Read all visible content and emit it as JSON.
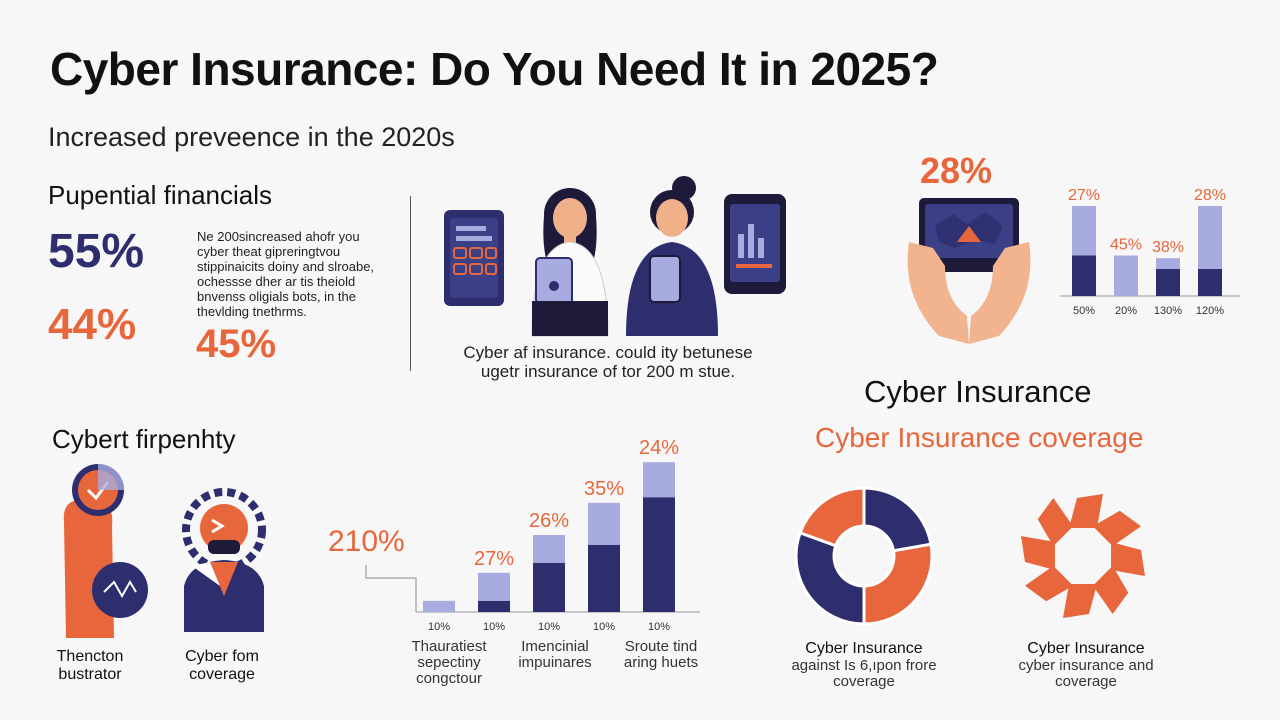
{
  "header": {
    "title": "Cyber Insurance: Do You Need It in 2025?",
    "subtitle": "Increased preveence in the 2020s"
  },
  "financials": {
    "heading": "Pupential financials",
    "stat_navy": "55%",
    "stat_orange_left": "44%",
    "stat_orange_right": "45%",
    "paragraph": "Ne 200sincreased ahofr you cyber theat gipreringtvou stippinaicits doiny and slroabe, ochessse dher ar tis theiold bnvenss oligials bots, in the thevlding tnethrms."
  },
  "people": {
    "caption_line1": "Cyber af insurance. could ity betunese",
    "caption_line2": "ugetr insurance of tor 200 m stue."
  },
  "top_right": {
    "headline_stat": "28%",
    "bars": [
      {
        "label": "27%",
        "axis": "50%",
        "light": 0.55,
        "dark": 0.45,
        "label_color": "#e8663b"
      },
      {
        "label": "45%",
        "axis": "20%",
        "light": 0.45,
        "dark": 0.0,
        "label_color": "#e8663b"
      },
      {
        "label": "38%",
        "axis": "130%",
        "light": 0.12,
        "dark": 0.3,
        "label_color": "#e8663b"
      },
      {
        "label": "28%",
        "axis": "120%",
        "light": 0.7,
        "dark": 0.3,
        "label_color": "#e8663b"
      }
    ]
  },
  "property": {
    "heading": "Cybert firpenhty",
    "item1_label": "Thencton bustrator",
    "item2_label": "Cyber fom coverage"
  },
  "mid_chart": {
    "big_value": "210%",
    "bars": [
      {
        "top_label": "",
        "axis": "10%",
        "light": 0.08,
        "dark": 0.0
      },
      {
        "top_label": "27%",
        "axis": "10%",
        "light": 0.2,
        "dark": 0.08
      },
      {
        "top_label": "26%",
        "axis": "10%",
        "light": 0.2,
        "dark": 0.35
      },
      {
        "top_label": "35%",
        "axis": "10%",
        "light": 0.3,
        "dark": 0.48
      },
      {
        "top_label": "24%",
        "axis": "10%",
        "light": 0.25,
        "dark": 0.82
      }
    ],
    "captions": [
      "Thauratiest sepectiny congctour",
      "Imencinial impuinares",
      "Sroute tind aring huets"
    ]
  },
  "coverage": {
    "heading": "Cyber Insurance",
    "subheading": "Cyber Insurance coverage",
    "donut_title": "Cyber Insurance",
    "donut_desc": "against Is 6,ıpon frore coverage",
    "flower_title": "Cyber Insurance",
    "flower_desc": "cyber insurance and coverage"
  },
  "colors": {
    "navy": "#2e2e6e",
    "orange": "#e8663b",
    "light_purple": "#a7abdf"
  }
}
